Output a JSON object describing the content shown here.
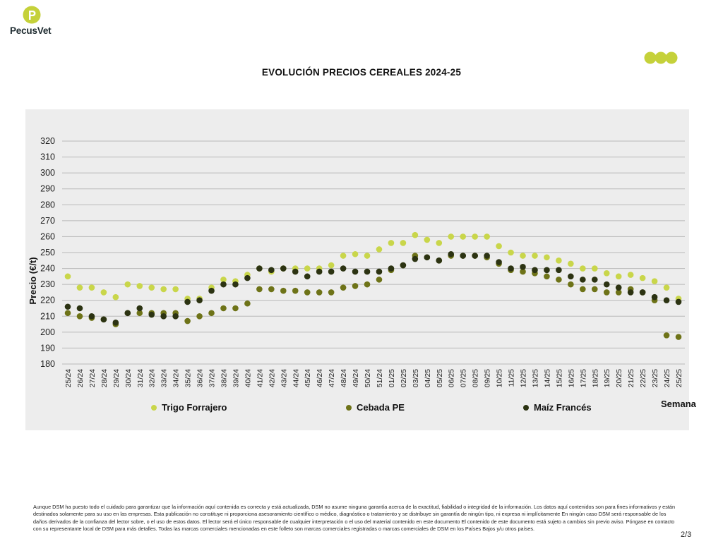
{
  "brand": {
    "name": "PecusVet",
    "accent": "#c5d13a",
    "text_color": "#1d2a2f"
  },
  "decor": {
    "dots_color": "#c5d13a"
  },
  "chart_data": {
    "type": "scatter",
    "title": "EVOLUCIÓN PRECIOS CEREALES 2024-25",
    "ylabel": "Precio (€/t)",
    "xlabel": "Semana",
    "ylim": [
      180,
      320
    ],
    "yticks": [
      180,
      190,
      200,
      210,
      220,
      230,
      240,
      250,
      260,
      270,
      280,
      290,
      300,
      310,
      320
    ],
    "grid": true,
    "legend_position": "bottom",
    "categories": [
      "25/24",
      "26/24",
      "27/24",
      "28/24",
      "29/24",
      "30/24",
      "31/24",
      "32/24",
      "33/24",
      "34/24",
      "35/24",
      "36/24",
      "37/24",
      "38/24",
      "39/24",
      "40/24",
      "41/24",
      "42/24",
      "43/24",
      "44/24",
      "45/24",
      "46/24",
      "47/24",
      "48/24",
      "49/24",
      "50/24",
      "51/24",
      "01/25",
      "02/25",
      "03/25",
      "04/25",
      "05/25",
      "06/25",
      "07/25",
      "08/25",
      "09/25",
      "10/25",
      "11/25",
      "12/25",
      "13/25",
      "14/25",
      "15/25",
      "16/25",
      "17/25",
      "18/25",
      "19/25",
      "20/25",
      "21/25",
      "22/25",
      "23/25",
      "24/25",
      "25/25"
    ],
    "series": [
      {
        "name": "Trigo Forrajero",
        "color": "#c9d64a",
        "values": [
          235,
          228,
          228,
          225,
          222,
          230,
          229,
          228,
          227,
          227,
          221,
          221,
          228,
          233,
          232,
          236,
          240,
          238,
          240,
          240,
          240,
          240,
          242,
          248,
          249,
          248,
          252,
          256,
          256,
          261,
          258,
          256,
          260,
          260,
          260,
          260,
          254,
          250,
          248,
          248,
          247,
          245,
          243,
          240,
          240,
          237,
          235,
          236,
          234,
          232,
          228,
          221
        ]
      },
      {
        "name": "Cebada PE",
        "color": "#6e7318",
        "values": [
          212,
          210,
          209,
          208,
          205,
          212,
          212,
          212,
          212,
          212,
          207,
          210,
          212,
          215,
          215,
          218,
          227,
          227,
          226,
          226,
          225,
          225,
          225,
          228,
          229,
          230,
          233,
          239,
          242,
          248,
          247,
          245,
          248,
          248,
          248,
          247,
          243,
          239,
          238,
          237,
          235,
          233,
          230,
          227,
          227,
          225,
          225,
          227,
          225,
          220,
          198,
          197
        ]
      },
      {
        "name": "Maíz Francés",
        "color": "#2c3312",
        "values": [
          216,
          215,
          210,
          208,
          206,
          212,
          215,
          211,
          210,
          210,
          219,
          220,
          226,
          230,
          230,
          234,
          240,
          239,
          240,
          238,
          235,
          238,
          238,
          240,
          238,
          238,
          238,
          240,
          242,
          246,
          247,
          245,
          249,
          248,
          248,
          248,
          244,
          240,
          241,
          239,
          239,
          239,
          235,
          233,
          233,
          230,
          228,
          225,
          225,
          222,
          220,
          219
        ]
      }
    ]
  },
  "footer": {
    "disclaimer": "Aunque DSM ha puesto todo el cuidado para garantizar que la información aquí contenida es correcta y está actualizada, DSM no asume ninguna garantía acerca de la exactitud, fiabilidad o integridad de la información. Los datos aquí contenidos son para fines informativos y están destinados solamente para su uso en las empresas. Esta publicación no constituye ni proporciona asesoramiento científico o médico, diagnóstico o tratamiento y se distribuye sin garantía de ningún tipo, ni expresa ni implícitamente En ningún caso DSM será responsable de los daños derivados de la confianza del lector sobre, o el uso de estos datos. El lector será el único responsable de cualquier interpretación o el uso del material contenido en este documento El contenido de este documento está sujeto a cambios sin previo aviso. Póngase en contacto con su representante local de DSM para más detalles. Todas las marcas comerciales mencionadas en este folleto son marcas comerciales registradas o marcas comerciales de DSM en los Países Bajos y/u otros países.",
    "page": "2/3"
  }
}
